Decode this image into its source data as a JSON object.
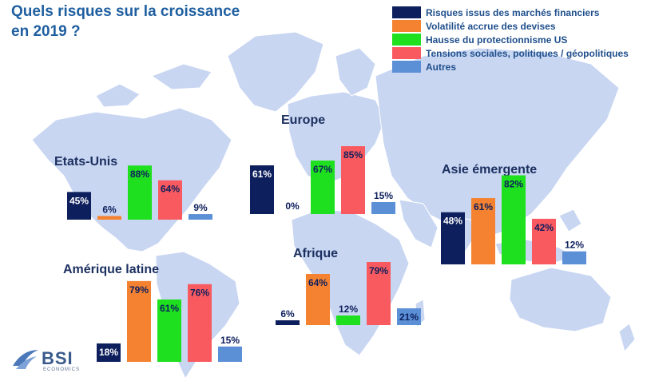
{
  "page": {
    "title_line1": "Quels risques sur la croissance",
    "title_line2": "en 2019 ?",
    "logo_text": "BSI",
    "logo_sub": "ECONOMICS"
  },
  "chart_data": {
    "type": "bar",
    "title": "Quels risques sur la croissance en 2019 ?",
    "unit": "%",
    "legend_position": "top-right",
    "categories": [
      "Risques issus des marchés financiers",
      "Volatilité accrue des devises",
      "Hausse du protectionnisme US",
      "Tensions sociales, politiques / géopolitiques",
      "Autres"
    ],
    "colors": [
      "#0d1f5c",
      "#f58231",
      "#1ee01e",
      "#f95a5f",
      "#5b8fd6"
    ],
    "regions": [
      {
        "name": "Etats-Unis",
        "values": [
          45,
          6,
          88,
          64,
          9
        ]
      },
      {
        "name": "Europe",
        "values": [
          61,
          0,
          67,
          85,
          15
        ]
      },
      {
        "name": "Asie émergente",
        "values": [
          48,
          61,
          82,
          42,
          12
        ]
      },
      {
        "name": "Amérique latine",
        "values": [
          18,
          79,
          61,
          76,
          15
        ]
      },
      {
        "name": "Afrique",
        "values": [
          6,
          64,
          12,
          79,
          21
        ]
      }
    ]
  }
}
